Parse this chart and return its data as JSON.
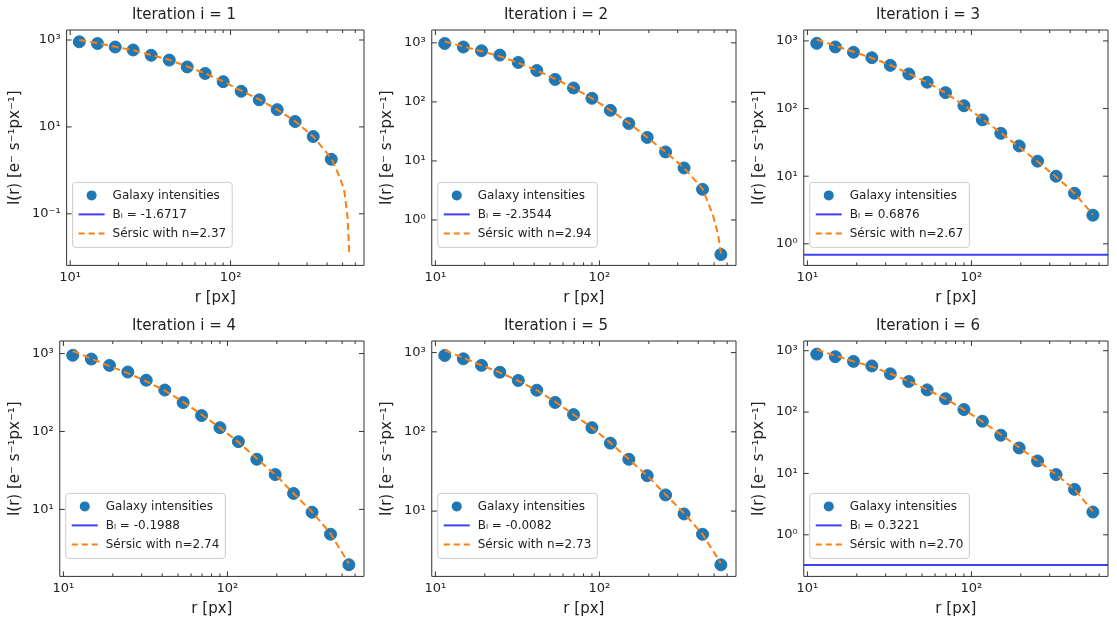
{
  "chart_data": [
    {
      "type": "scatter",
      "title": "Iteration i = 1",
      "xlabel": "r [px]",
      "ylabel": "I(r) [e⁻ s⁻¹px⁻¹]",
      "log": "xy",
      "legend": "bottom left",
      "xlim": [
        9.5,
        680
      ],
      "xticks": [
        {
          "value": 10,
          "label": "10¹"
        },
        {
          "value": 100,
          "label": "10²"
        },
        {
          "value": 20,
          "label": null
        },
        {
          "value": 30,
          "label": null
        },
        {
          "value": 40,
          "label": null
        },
        {
          "value": 50,
          "label": null
        },
        {
          "value": 60,
          "label": null
        },
        {
          "value": 70,
          "label": null
        },
        {
          "value": 80,
          "label": null
        },
        {
          "value": 90,
          "label": null
        },
        {
          "value": 200,
          "label": null
        },
        {
          "value": 300,
          "label": null
        },
        {
          "value": 400,
          "label": null
        },
        {
          "value": 500,
          "label": null
        },
        {
          "value": 600,
          "label": null
        }
      ],
      "ylim": [
        0.0065,
        1700
      ],
      "yticks": [
        {
          "value": 0.1,
          "label": "10⁻¹"
        },
        {
          "value": 10,
          "label": "10¹"
        },
        {
          "value": 1000,
          "label": "10³"
        }
      ],
      "series": [
        {
          "name": "Galaxy intensities",
          "color": "#1f77b4",
          "marker": "circle",
          "x": [
            11.4,
            14.8,
            19.1,
            24.7,
            32,
            41.5,
            53.7,
            69.5,
            90,
            116.6,
            151,
            195.5,
            253,
            328,
            425
          ],
          "values": [
            910,
            830,
            690,
            590,
            445,
            345,
            240,
            170,
            110,
            66,
            42,
            25,
            13.3,
            6.0,
            1.8
          ]
        },
        {
          "name": "Bₗ = -1.6717",
          "type": "line",
          "color": "#3f3ff5",
          "values": [
            null
          ]
        },
        {
          "name": "Sérsic with n=2.37",
          "type": "line",
          "line_style": "dashed",
          "color": "#ff7f0e",
          "x": [
            11.4,
            14.8,
            19.1,
            24.7,
            32,
            41.5,
            53.7,
            69.5,
            90,
            116.6,
            151,
            195.5,
            253,
            328,
            425,
            460,
            500,
            514,
            537,
            550
          ],
          "values": [
            1000,
            850,
            700,
            580,
            450,
            350,
            245,
            170,
            112,
            68,
            43,
            25,
            13.5,
            6.0,
            1.9,
            1.0,
            0.46,
            0.31,
            0.083,
            0.0125
          ]
        }
      ]
    },
    {
      "type": "scatter",
      "title": "Iteration i = 2",
      "xlabel": "r [px]",
      "ylabel": "I(r) [e⁻ s⁻¹px⁻¹]",
      "log": "xy",
      "legend": "bottom left",
      "xlim": [
        9.5,
        680
      ],
      "xticks": [
        {
          "value": 10,
          "label": "10¹"
        },
        {
          "value": 100,
          "label": "10²"
        },
        {
          "value": 20,
          "label": null
        },
        {
          "value": 30,
          "label": null
        },
        {
          "value": 40,
          "label": null
        },
        {
          "value": 50,
          "label": null
        },
        {
          "value": 60,
          "label": null
        },
        {
          "value": 70,
          "label": null
        },
        {
          "value": 80,
          "label": null
        },
        {
          "value": 90,
          "label": null
        },
        {
          "value": 200,
          "label": null
        },
        {
          "value": 300,
          "label": null
        },
        {
          "value": 400,
          "label": null
        },
        {
          "value": 500,
          "label": null
        },
        {
          "value": 600,
          "label": null
        }
      ],
      "ylim": [
        0.17,
        1650
      ],
      "yticks": [
        {
          "value": 1,
          "label": "10⁰"
        },
        {
          "value": 10,
          "label": "10¹"
        },
        {
          "value": 100,
          "label": "10²"
        },
        {
          "value": 1000,
          "label": "10³"
        }
      ],
      "series": [
        {
          "name": "Galaxy intensities",
          "color": "#1f77b4",
          "marker": "circle",
          "x": [
            11.4,
            14.8,
            19.1,
            24.7,
            32,
            41.5,
            53.7,
            69.5,
            90,
            116.6,
            151,
            195.5,
            253,
            328,
            425,
            550
          ],
          "values": [
            975,
            850,
            735,
            620,
            465,
            340,
            240,
            172,
            115,
            72,
            43,
            25,
            14.2,
            7.6,
            3.3,
            0.26
          ]
        },
        {
          "name": "Bₗ = -2.3544",
          "type": "line",
          "color": "#3f3ff5",
          "values": [
            null
          ]
        },
        {
          "name": "Sérsic with n=2.94",
          "type": "line",
          "line_style": "dashed",
          "color": "#ff7f0e",
          "x": [
            11.4,
            14.8,
            19.1,
            24.7,
            32,
            41.5,
            53.7,
            69.5,
            90,
            116.6,
            151,
            195.5,
            253,
            328,
            425,
            492,
            530,
            550
          ],
          "values": [
            1050,
            870,
            720,
            590,
            460,
            340,
            245,
            172,
            115,
            72,
            44,
            25,
            14.2,
            7.6,
            3.4,
            1.2,
            0.55,
            0.27
          ]
        }
      ]
    },
    {
      "type": "scatter",
      "title": "Iteration i = 3",
      "xlabel": "r [px]",
      "ylabel": "I(r) [e⁻ s⁻¹px⁻¹]",
      "log": "xy",
      "legend": "bottom left",
      "xlim": [
        9.5,
        680
      ],
      "xticks": [
        {
          "value": 10,
          "label": "10¹"
        },
        {
          "value": 100,
          "label": "10²"
        },
        {
          "value": 20,
          "label": null
        },
        {
          "value": 30,
          "label": null
        },
        {
          "value": 40,
          "label": null
        },
        {
          "value": 50,
          "label": null
        },
        {
          "value": 60,
          "label": null
        },
        {
          "value": 70,
          "label": null
        },
        {
          "value": 80,
          "label": null
        },
        {
          "value": 90,
          "label": null
        },
        {
          "value": 200,
          "label": null
        },
        {
          "value": 300,
          "label": null
        },
        {
          "value": 400,
          "label": null
        },
        {
          "value": 500,
          "label": null
        },
        {
          "value": 600,
          "label": null
        }
      ],
      "ylim": [
        0.48,
        1450
      ],
      "yticks": [
        {
          "value": 1,
          "label": "10⁰"
        },
        {
          "value": 10,
          "label": "10¹"
        },
        {
          "value": 100,
          "label": "10²"
        },
        {
          "value": 1000,
          "label": "10³"
        }
      ],
      "series": [
        {
          "name": "Galaxy intensities",
          "color": "#1f77b4",
          "marker": "circle",
          "x": [
            11.4,
            14.8,
            19.1,
            24.7,
            32,
            41.5,
            53.7,
            69.5,
            90,
            116.6,
            151,
            195.5,
            253,
            328,
            425,
            550
          ],
          "values": [
            920,
            815,
            680,
            565,
            435,
            325,
            245,
            172,
            110,
            68,
            43,
            28,
            16.7,
            10,
            5.6,
            2.65
          ]
        },
        {
          "name": "Bₗ = 0.6876",
          "type": "line",
          "color": "#3f3ff5",
          "x": [
            9.5,
            680
          ],
          "values": [
            0.6876,
            0.6876
          ]
        },
        {
          "name": "Sérsic with n=2.67",
          "type": "line",
          "line_style": "dashed",
          "color": "#ff7f0e",
          "x": [
            11.4,
            14.8,
            19.1,
            24.7,
            32,
            41.5,
            53.7,
            69.5,
            90,
            116.6,
            151,
            195.5,
            253,
            328,
            425,
            550
          ],
          "values": [
            1050,
            850,
            690,
            560,
            440,
            330,
            245,
            170,
            112,
            70,
            44,
            27,
            16.5,
            9.8,
            5.6,
            2.7
          ]
        }
      ]
    },
    {
      "type": "scatter",
      "title": "Iteration i = 4",
      "xlabel": "r [px]",
      "ylabel": "I(r) [e⁻ s⁻¹px⁻¹]",
      "log": "xy",
      "legend": "bottom left",
      "xlim": [
        9.5,
        680
      ],
      "xticks": [
        {
          "value": 10,
          "label": "10¹"
        },
        {
          "value": 100,
          "label": "10²"
        },
        {
          "value": 20,
          "label": null
        },
        {
          "value": 30,
          "label": null
        },
        {
          "value": 40,
          "label": null
        },
        {
          "value": 50,
          "label": null
        },
        {
          "value": 60,
          "label": null
        },
        {
          "value": 70,
          "label": null
        },
        {
          "value": 80,
          "label": null
        },
        {
          "value": 90,
          "label": null
        },
        {
          "value": 200,
          "label": null
        },
        {
          "value": 300,
          "label": null
        },
        {
          "value": 400,
          "label": null
        },
        {
          "value": 500,
          "label": null
        },
        {
          "value": 600,
          "label": null
        }
      ],
      "ylim": [
        1.38,
        1450
      ],
      "yticks": [
        {
          "value": 10,
          "label": "10¹"
        },
        {
          "value": 100,
          "label": "10²"
        },
        {
          "value": 1000,
          "label": "10³"
        }
      ],
      "series": [
        {
          "name": "Galaxy intensities",
          "color": "#1f77b4",
          "marker": "circle",
          "x": [
            11.4,
            14.8,
            19.1,
            24.7,
            32,
            41.5,
            53.7,
            69.5,
            90,
            116.6,
            151,
            195.5,
            253,
            328,
            425,
            550
          ],
          "values": [
            950,
            850,
            705,
            580,
            455,
            340,
            235,
            160,
            112,
            74,
            44,
            28,
            16,
            9.2,
            4.8,
            1.95
          ]
        },
        {
          "name": "Bₗ = -0.1988",
          "type": "line",
          "color": "#3f3ff5",
          "values": [
            null
          ]
        },
        {
          "name": "Sérsic with n=2.74",
          "type": "line",
          "line_style": "dashed",
          "color": "#ff7f0e",
          "x": [
            11.4,
            14.8,
            19.1,
            24.7,
            32,
            41.5,
            53.7,
            69.5,
            90,
            116.6,
            151,
            195.5,
            253,
            328,
            425,
            550
          ],
          "values": [
            1080,
            860,
            690,
            560,
            440,
            335,
            240,
            165,
            112,
            73,
            45,
            28,
            16,
            9.3,
            4.9,
            2.0
          ]
        }
      ]
    },
    {
      "type": "scatter",
      "title": "Iteration i = 5",
      "xlabel": "r [px]",
      "ylabel": "I(r) [e⁻ s⁻¹px⁻¹]",
      "log": "xy",
      "legend": "bottom left",
      "xlim": [
        9.5,
        680
      ],
      "xticks": [
        {
          "value": 10,
          "label": "10¹"
        },
        {
          "value": 100,
          "label": "10²"
        },
        {
          "value": 20,
          "label": null
        },
        {
          "value": 30,
          "label": null
        },
        {
          "value": 40,
          "label": null
        },
        {
          "value": 50,
          "label": null
        },
        {
          "value": 60,
          "label": null
        },
        {
          "value": 70,
          "label": null
        },
        {
          "value": 80,
          "label": null
        },
        {
          "value": 90,
          "label": null
        },
        {
          "value": 200,
          "label": null
        },
        {
          "value": 300,
          "label": null
        },
        {
          "value": 400,
          "label": null
        },
        {
          "value": 500,
          "label": null
        },
        {
          "value": 600,
          "label": null
        }
      ],
      "ylim": [
        1.5,
        1400
      ],
      "yticks": [
        {
          "value": 10,
          "label": "10¹"
        },
        {
          "value": 100,
          "label": "10²"
        },
        {
          "value": 1000,
          "label": "10³"
        }
      ],
      "series": [
        {
          "name": "Galaxy intensities",
          "color": "#1f77b4",
          "marker": "circle",
          "x": [
            11.4,
            14.8,
            19.1,
            24.7,
            32,
            41.5,
            53.7,
            69.5,
            90,
            116.6,
            151,
            195.5,
            253,
            328,
            425,
            550
          ],
          "values": [
            920,
            835,
            690,
            565,
            445,
            335,
            235,
            165,
            113,
            72,
            45,
            28,
            16,
            9.2,
            5.1,
            2.1
          ]
        },
        {
          "name": "Bₗ = -0.0082",
          "type": "line",
          "color": "#3f3ff5",
          "values": [
            null
          ]
        },
        {
          "name": "Sérsic with n=2.73",
          "type": "line",
          "line_style": "dashed",
          "color": "#ff7f0e",
          "x": [
            11.4,
            14.8,
            19.1,
            24.7,
            32,
            41.5,
            53.7,
            69.5,
            90,
            116.6,
            151,
            195.5,
            253,
            328,
            425,
            550
          ],
          "values": [
            1070,
            860,
            690,
            560,
            440,
            335,
            240,
            165,
            113,
            73,
            45,
            28,
            16.2,
            9.4,
            5.1,
            2.2
          ]
        }
      ]
    },
    {
      "type": "scatter",
      "title": "Iteration i = 6",
      "xlabel": "r [px]",
      "ylabel": "I(r) [e⁻ s⁻¹px⁻¹]",
      "log": "xy",
      "legend": "bottom left",
      "xlim": [
        9.5,
        680
      ],
      "xticks": [
        {
          "value": 10,
          "label": "10¹"
        },
        {
          "value": 100,
          "label": "10²"
        },
        {
          "value": 20,
          "label": null
        },
        {
          "value": 30,
          "label": null
        },
        {
          "value": 40,
          "label": null
        },
        {
          "value": 50,
          "label": null
        },
        {
          "value": 60,
          "label": null
        },
        {
          "value": 70,
          "label": null
        },
        {
          "value": 80,
          "label": null
        },
        {
          "value": 90,
          "label": null
        },
        {
          "value": 200,
          "label": null
        },
        {
          "value": 300,
          "label": null
        },
        {
          "value": 400,
          "label": null
        },
        {
          "value": 500,
          "label": null
        },
        {
          "value": 600,
          "label": null
        }
      ],
      "ylim": [
        0.21,
        1440
      ],
      "yticks": [
        {
          "value": 1,
          "label": "10⁰"
        },
        {
          "value": 10,
          "label": "10¹"
        },
        {
          "value": 100,
          "label": "10²"
        },
        {
          "value": 1000,
          "label": "10³"
        }
      ],
      "series": [
        {
          "name": "Galaxy intensities",
          "color": "#1f77b4",
          "marker": "circle",
          "x": [
            11.4,
            14.8,
            19.1,
            24.7,
            32,
            41.5,
            53.7,
            69.5,
            90,
            116.6,
            151,
            195.5,
            253,
            328,
            425,
            550
          ],
          "values": [
            880,
            800,
            670,
            565,
            420,
            315,
            230,
            165,
            110,
            71,
            42,
            26,
            16,
            9.6,
            5.5,
            2.35
          ]
        },
        {
          "name": "Bₗ = 0.3221",
          "type": "line",
          "color": "#3f3ff5",
          "x": [
            9.5,
            680
          ],
          "values": [
            0.3221,
            0.3221
          ]
        },
        {
          "name": "Sérsic with n=2.70",
          "type": "line",
          "line_style": "dashed",
          "color": "#ff7f0e",
          "x": [
            11.4,
            14.8,
            19.1,
            24.7,
            32,
            41.5,
            53.7,
            69.5,
            90,
            116.6,
            151,
            195.5,
            253,
            328,
            425,
            550
          ],
          "values": [
            1040,
            830,
            670,
            550,
            425,
            320,
            232,
            165,
            110,
            70,
            43,
            26.5,
            16,
            9.6,
            5.5,
            2.4
          ]
        }
      ]
    }
  ]
}
